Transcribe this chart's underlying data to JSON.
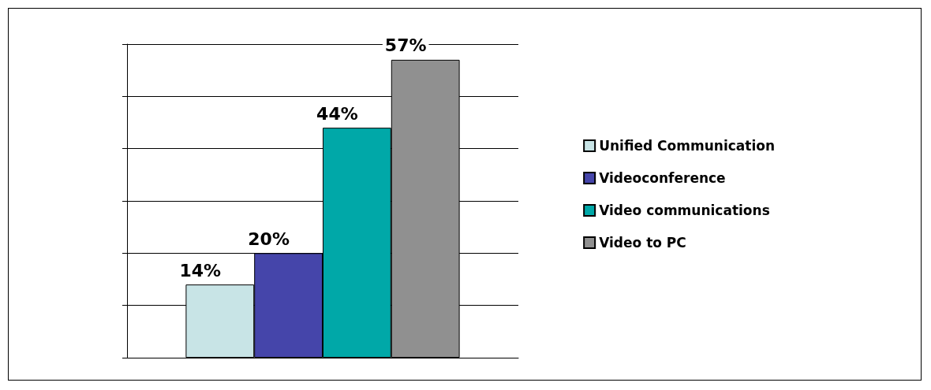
{
  "chart_data": {
    "type": "bar",
    "categories": [
      null
    ],
    "series": [
      {
        "name": "Unified Communication",
        "color": "#c8e4e6",
        "values": [
          14
        ],
        "value_labels": [
          "14%"
        ]
      },
      {
        "name": "Videoconference",
        "color": "#4545aa",
        "values": [
          20
        ],
        "value_labels": [
          "20%"
        ]
      },
      {
        "name": "Video communications",
        "color": "#00a8a8",
        "values": [
          44
        ],
        "value_labels": [
          "44%"
        ]
      },
      {
        "name": "Video to PC",
        "color": "#909090",
        "values": [
          57
        ],
        "value_labels": [
          "57%"
        ]
      }
    ],
    "ylim": [
      0,
      60
    ],
    "yticks": [
      {
        "value": 0,
        "label": null
      },
      {
        "value": 10,
        "label": null
      },
      {
        "value": 20,
        "label": null
      },
      {
        "value": 30,
        "label": null
      },
      {
        "value": 40,
        "label": null
      },
      {
        "value": 50,
        "label": null
      },
      {
        "value": 60,
        "label": null
      }
    ],
    "grid": "y",
    "legend": "right"
  }
}
